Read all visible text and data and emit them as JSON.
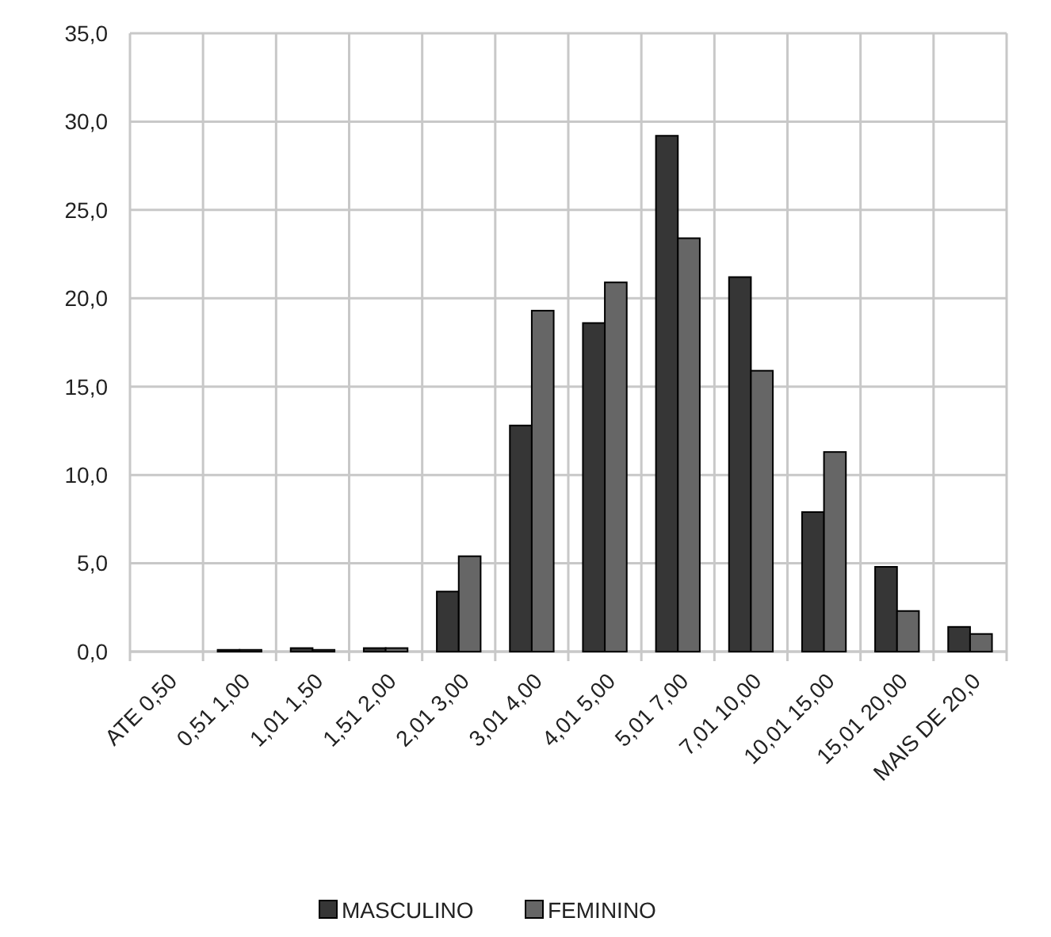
{
  "chart_data": {
    "type": "bar",
    "categories": [
      "ATE 0,50",
      "0,51 1,00",
      "1,01 1,50",
      "1,51 2,00",
      "2,01 3,00",
      "3,01 4,00",
      "4,01 5,00",
      "5,01 7,00",
      "7,01 10,00",
      "10,01 15,00",
      "15,01 20,00",
      "MAIS DE 20,0"
    ],
    "series": [
      {
        "name": "MASCULINO",
        "color": "#363636",
        "values": [
          0,
          0.1,
          0.2,
          0.2,
          3.4,
          12.8,
          18.6,
          29.2,
          21.2,
          7.9,
          4.8,
          1.4
        ]
      },
      {
        "name": "FEMININO",
        "color": "#666666",
        "values": [
          0,
          0.1,
          0.1,
          0.2,
          5.4,
          19.3,
          20.9,
          23.4,
          15.9,
          11.3,
          2.3,
          1.0
        ]
      }
    ],
    "ylim": [
      0,
      35
    ],
    "yticks": [
      {
        "value": 0,
        "label": "0,0"
      },
      {
        "value": 5,
        "label": "5,0"
      },
      {
        "value": 10,
        "label": "10,0"
      },
      {
        "value": 15,
        "label": "15,0"
      },
      {
        "value": 20,
        "label": "20,0"
      },
      {
        "value": 25,
        "label": "25,0"
      },
      {
        "value": 30,
        "label": "30,0"
      },
      {
        "value": 35,
        "label": "35,0"
      }
    ],
    "grid": true,
    "legend": "bottom"
  }
}
